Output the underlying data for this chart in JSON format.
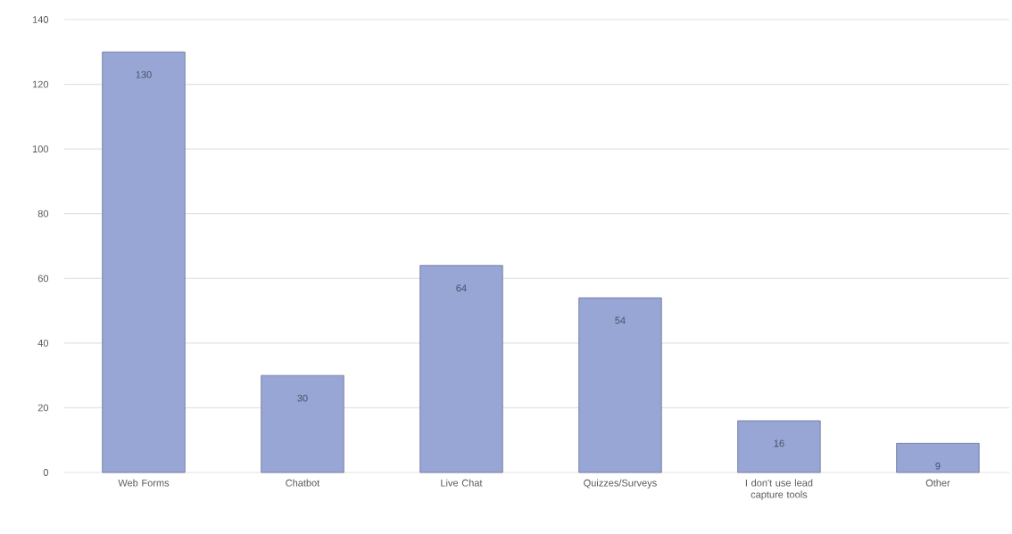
{
  "chart_data": {
    "type": "bar",
    "categories": [
      "Web Forms",
      "Chatbot",
      "Live Chat",
      "Quizzes/Surveys",
      "I don't use lead capture tools",
      "Other"
    ],
    "values": [
      130,
      30,
      64,
      54,
      16,
      9
    ],
    "color": "#98a6d6",
    "ylim": [
      0,
      140
    ],
    "yticks": [
      0,
      20,
      40,
      60,
      80,
      100,
      120,
      140
    ],
    "grid": "y",
    "data_labels": true
  }
}
